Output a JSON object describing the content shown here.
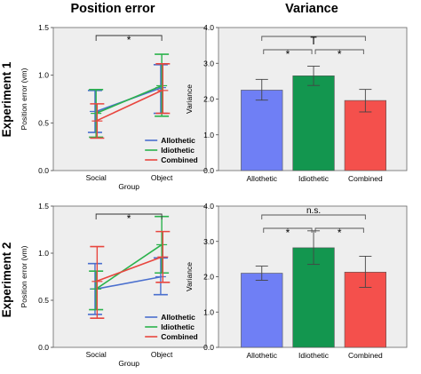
{
  "column_titles": {
    "left": "Position error",
    "right": "Variance"
  },
  "row_titles": {
    "top": "Experiment 1",
    "bottom": "Experiment 2"
  },
  "colors": {
    "Allothetic": "#4a6fce",
    "Idiothetic": "#2bb24c",
    "Combined": "#e8463f",
    "bar_Allothetic": "#6f7ff5",
    "bar_Idiothetic": "#13964f",
    "bar_Combined": "#f4504c",
    "panel_bg": "#eeeeee"
  },
  "chart_data": [
    {
      "id": "exp1-position",
      "type": "line",
      "ylabel": "Position error (vm)",
      "xlabel": "Group",
      "categories": [
        "Social",
        "Object"
      ],
      "ylim": [
        0,
        1.5
      ],
      "yticks": [
        "0.0",
        "0.5",
        "1.0",
        "1.5"
      ],
      "legend": "bottom-right",
      "series": [
        {
          "name": "Allothetic",
          "values": [
            0.62,
            0.87
          ],
          "err_low": [
            0.4,
            0.6
          ],
          "err_high": [
            0.84,
            1.11
          ]
        },
        {
          "name": "Idiothetic",
          "values": [
            0.6,
            0.89
          ],
          "err_low": [
            0.35,
            0.57
          ],
          "err_high": [
            0.85,
            1.22
          ]
        },
        {
          "name": "Combined",
          "values": [
            0.52,
            0.84
          ],
          "err_low": [
            0.34,
            0.6
          ],
          "err_high": [
            0.7,
            1.12
          ]
        }
      ],
      "annotations": [
        {
          "label": "*",
          "from": "Social",
          "to": "Object"
        }
      ]
    },
    {
      "id": "exp1-variance",
      "type": "bar",
      "ylabel": "Variance",
      "categories": [
        "Allothetic",
        "Idiothetic",
        "Combined"
      ],
      "values": [
        2.25,
        2.65,
        1.96
      ],
      "err_low": [
        1.97,
        2.38,
        1.64
      ],
      "err_high": [
        2.55,
        2.92,
        2.27
      ],
      "ylim": [
        0,
        4.0
      ],
      "yticks": [
        "0.0",
        "1.0",
        "2.0",
        "3.0",
        "4.0"
      ],
      "annotations": [
        {
          "label": "T",
          "from": "Allothetic",
          "to": "Combined",
          "level": "outer"
        },
        {
          "label": "*",
          "from": "Allothetic",
          "to": "Idiothetic",
          "level": "inner"
        },
        {
          "label": "*",
          "from": "Idiothetic",
          "to": "Combined",
          "level": "inner"
        }
      ]
    },
    {
      "id": "exp2-position",
      "type": "line",
      "ylabel": "Position error (vm)",
      "xlabel": "Group",
      "categories": [
        "Social",
        "Object"
      ],
      "ylim": [
        0,
        1.5
      ],
      "yticks": [
        "0.0",
        "0.5",
        "1.0",
        "1.5"
      ],
      "legend": "bottom-right",
      "series": [
        {
          "name": "Allothetic",
          "values": [
            0.62,
            0.75
          ],
          "err_low": [
            0.35,
            0.56
          ],
          "err_high": [
            0.89,
            0.95
          ]
        },
        {
          "name": "Idiothetic",
          "values": [
            0.62,
            1.09
          ],
          "err_low": [
            0.4,
            0.79
          ],
          "err_high": [
            0.81,
            1.39
          ]
        },
        {
          "name": "Combined",
          "values": [
            0.7,
            0.96
          ],
          "err_low": [
            0.31,
            0.69
          ],
          "err_high": [
            1.07,
            1.23
          ]
        }
      ],
      "annotations": [
        {
          "label": "*",
          "from": "Social",
          "to": "Object"
        }
      ]
    },
    {
      "id": "exp2-variance",
      "type": "bar",
      "ylabel": "Variance",
      "categories": [
        "Allothetic",
        "Idiothetic",
        "Combined"
      ],
      "values": [
        2.1,
        2.82,
        2.13
      ],
      "err_low": [
        1.9,
        2.35,
        1.7
      ],
      "err_high": [
        2.3,
        3.3,
        2.58
      ],
      "ylim": [
        0,
        4.0
      ],
      "yticks": [
        "0.0",
        "1.0",
        "2.0",
        "3.0",
        "4.0"
      ],
      "annotations": [
        {
          "label": "n.s.",
          "from": "Allothetic",
          "to": "Combined",
          "level": "outer"
        },
        {
          "label": "*",
          "from": "Allothetic",
          "to": "Idiothetic",
          "level": "inner"
        },
        {
          "label": "*",
          "from": "Idiothetic",
          "to": "Combined",
          "level": "inner"
        }
      ]
    }
  ]
}
